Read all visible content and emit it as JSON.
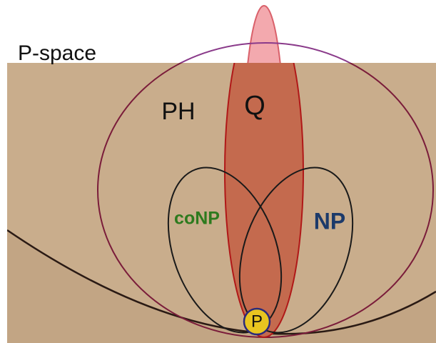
{
  "title": "P-space",
  "regions": {
    "ph": "PH",
    "q": "Q",
    "conp": "coNP",
    "np": "NP",
    "p": "P"
  }
}
